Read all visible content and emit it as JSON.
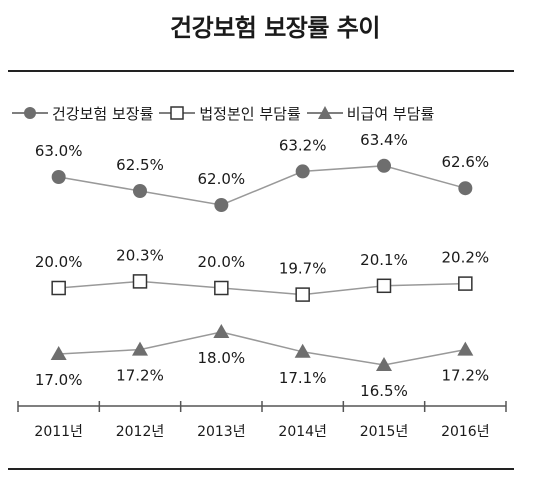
{
  "title": "건강보험 보장률 추이",
  "chart_data": {
    "type": "line",
    "categories": [
      "2011년",
      "2012년",
      "2013년",
      "2014년",
      "2015년",
      "2016년"
    ],
    "series": [
      {
        "name": "건강보험 보장률",
        "values": [
          63.0,
          62.5,
          62.0,
          63.2,
          63.4,
          62.6
        ],
        "labels": [
          "63.0%",
          "62.5%",
          "62.0%",
          "63.2%",
          "63.4%",
          "62.6%"
        ],
        "marker": "circle"
      },
      {
        "name": "법정본인 부담률",
        "values": [
          20.0,
          20.3,
          20.0,
          19.7,
          20.1,
          20.2
        ],
        "labels": [
          "20.0%",
          "20.3%",
          "20.0%",
          "19.7%",
          "20.1%",
          "20.2%"
        ],
        "marker": "square"
      },
      {
        "name": "비급여 부담률",
        "values": [
          17.0,
          17.2,
          18.0,
          17.1,
          16.5,
          17.2
        ],
        "labels": [
          "17.0%",
          "17.2%",
          "18.0%",
          "17.1%",
          "16.5%",
          "17.2%"
        ],
        "marker": "triangle"
      }
    ],
    "grid": false,
    "legend_position": "top-left",
    "colors": {
      "marker_fill": "#6e6e6e",
      "line": "#999999",
      "text": "#1a1a1a"
    }
  }
}
